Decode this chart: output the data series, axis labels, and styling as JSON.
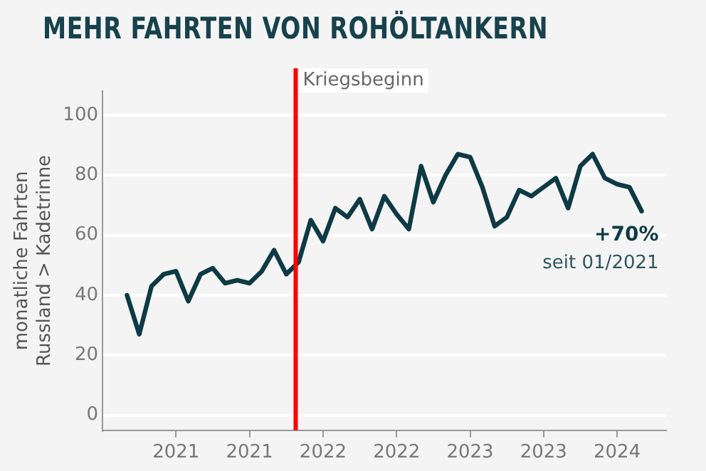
{
  "chart_data": {
    "type": "line",
    "title": "MEHR FAHRTEN VON ROHÖLTANKERN",
    "ylabel": "monatliche Fahrten\nRussland > Kadetrinne",
    "x": [
      "2021-01",
      "2021-02",
      "2021-03",
      "2021-04",
      "2021-05",
      "2021-06",
      "2021-07",
      "2021-08",
      "2021-09",
      "2021-10",
      "2021-11",
      "2021-12",
      "2022-01",
      "2022-02",
      "2022-03",
      "2022-04",
      "2022-05",
      "2022-06",
      "2022-07",
      "2022-08",
      "2022-09",
      "2022-10",
      "2022-11",
      "2022-12",
      "2023-01",
      "2023-02",
      "2023-03",
      "2023-04",
      "2023-05",
      "2023-06",
      "2023-07",
      "2023-08",
      "2023-09",
      "2023-10",
      "2023-11",
      "2023-12",
      "2024-01",
      "2024-02",
      "2024-03",
      "2024-04",
      "2024-05",
      "2024-06",
      "2024-07"
    ],
    "series": [
      {
        "color": "#0d3a45",
        "values": [
          40,
          27,
          43,
          47,
          48,
          38,
          47,
          49,
          44,
          45,
          44,
          48,
          55,
          47,
          51,
          65,
          58,
          69,
          66,
          72,
          62,
          73,
          67,
          62,
          83,
          71,
          80,
          87,
          86,
          76,
          63,
          66,
          75,
          73,
          76,
          79,
          69,
          83,
          87,
          79,
          77,
          76,
          68
        ]
      }
    ],
    "xlim": [
      "2020-11",
      "2024-09"
    ],
    "xticks": [
      {
        "value": "2021-05",
        "label": "2021"
      },
      {
        "value": "2021-11",
        "label": "2021"
      },
      {
        "value": "2022-05",
        "label": "2022"
      },
      {
        "value": "2022-11",
        "label": "2022"
      },
      {
        "value": "2023-05",
        "label": "2023"
      },
      {
        "value": "2023-11",
        "label": "2023"
      },
      {
        "value": "2024-05",
        "label": "2024"
      }
    ],
    "ylim": [
      -5,
      108
    ],
    "yticks": [
      0,
      20,
      40,
      60,
      80,
      100
    ],
    "grid": "y",
    "legend": false,
    "marker": "none",
    "line_style": "solid",
    "ref_lines": [
      {
        "axis": "x",
        "value": "2022-02-24",
        "label": "Kriegsbeginn",
        "color": "#ff0000"
      }
    ],
    "annotations": [
      {
        "text": "+70%",
        "x": "2024-07",
        "y": 68
      },
      "seit 01/2021"
    ]
  }
}
